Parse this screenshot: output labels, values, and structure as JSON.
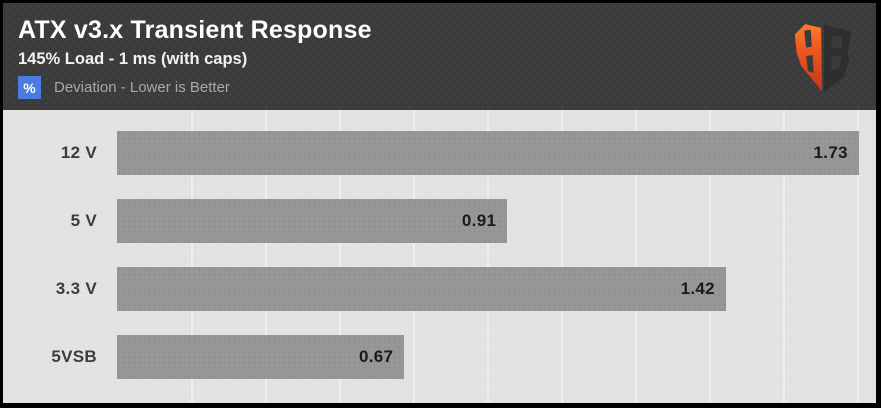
{
  "header": {
    "title": "ATX v3.x Transient Response",
    "subtitle": "145% Load - 1 ms (with caps)",
    "legend_badge": "%",
    "legend_text": "Deviation - Lower is Better"
  },
  "chart_data": {
    "type": "bar",
    "orientation": "horizontal",
    "title": "ATX v3.x Transient Response",
    "subtitle": "145% Load - 1 ms (with caps)",
    "unit": "%",
    "note": "Deviation - Lower is Better",
    "categories": [
      "12 V",
      "5 V",
      "3.3 V",
      "5VSB"
    ],
    "values": [
      1.73,
      0.91,
      1.42,
      0.67
    ],
    "xlim": [
      0,
      1.77
    ],
    "grid": true,
    "value_labels": "inside-end",
    "legend_position": "top-left"
  },
  "colors": {
    "header_bg": "#3b3b3b",
    "chart_bg": "#e3e3e3",
    "bar_fill": "#979797",
    "gridline": "#efefef",
    "badge_bg": "#4a7ce0",
    "badge_text": "#ffffff",
    "title_text": "#ffffff",
    "subtitle_text": "#f2f2f2",
    "legend_text": "#a8a8a8",
    "value_text": "#1a1a1a",
    "category_text": "#3d3d3d",
    "frame_border": "#000000",
    "logo_orange_top": "#ff7a30",
    "logo_orange_bottom": "#c63618",
    "logo_dark": "#2e2e2e"
  }
}
